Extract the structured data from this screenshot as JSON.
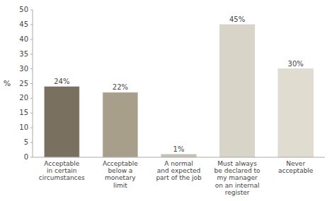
{
  "chart_data": {
    "type": "bar",
    "categories": [
      "Acceptable\nin certain\ncircumstances",
      "Acceptable\nbelow a\nmonetary\nlimit",
      "A normal\nand expected\npart of the job",
      "Must always\nbe declared to\nmy manager\non an internal\nregister",
      "Never\nacceptable"
    ],
    "values": [
      24,
      22,
      1,
      45,
      30
    ],
    "value_labels": [
      "24%",
      "22%",
      "1%",
      "45%",
      "30%"
    ],
    "colors": [
      "#7a7060",
      "#a89f8a",
      "#c8c0b0",
      "#d8d4c8",
      "#e0ddd0"
    ],
    "ylabel": "%",
    "ylim": [
      0,
      50
    ],
    "yticks": [
      0,
      5,
      10,
      15,
      20,
      25,
      30,
      35,
      40,
      45,
      50
    ],
    "grid": false,
    "data_labels": true
  }
}
